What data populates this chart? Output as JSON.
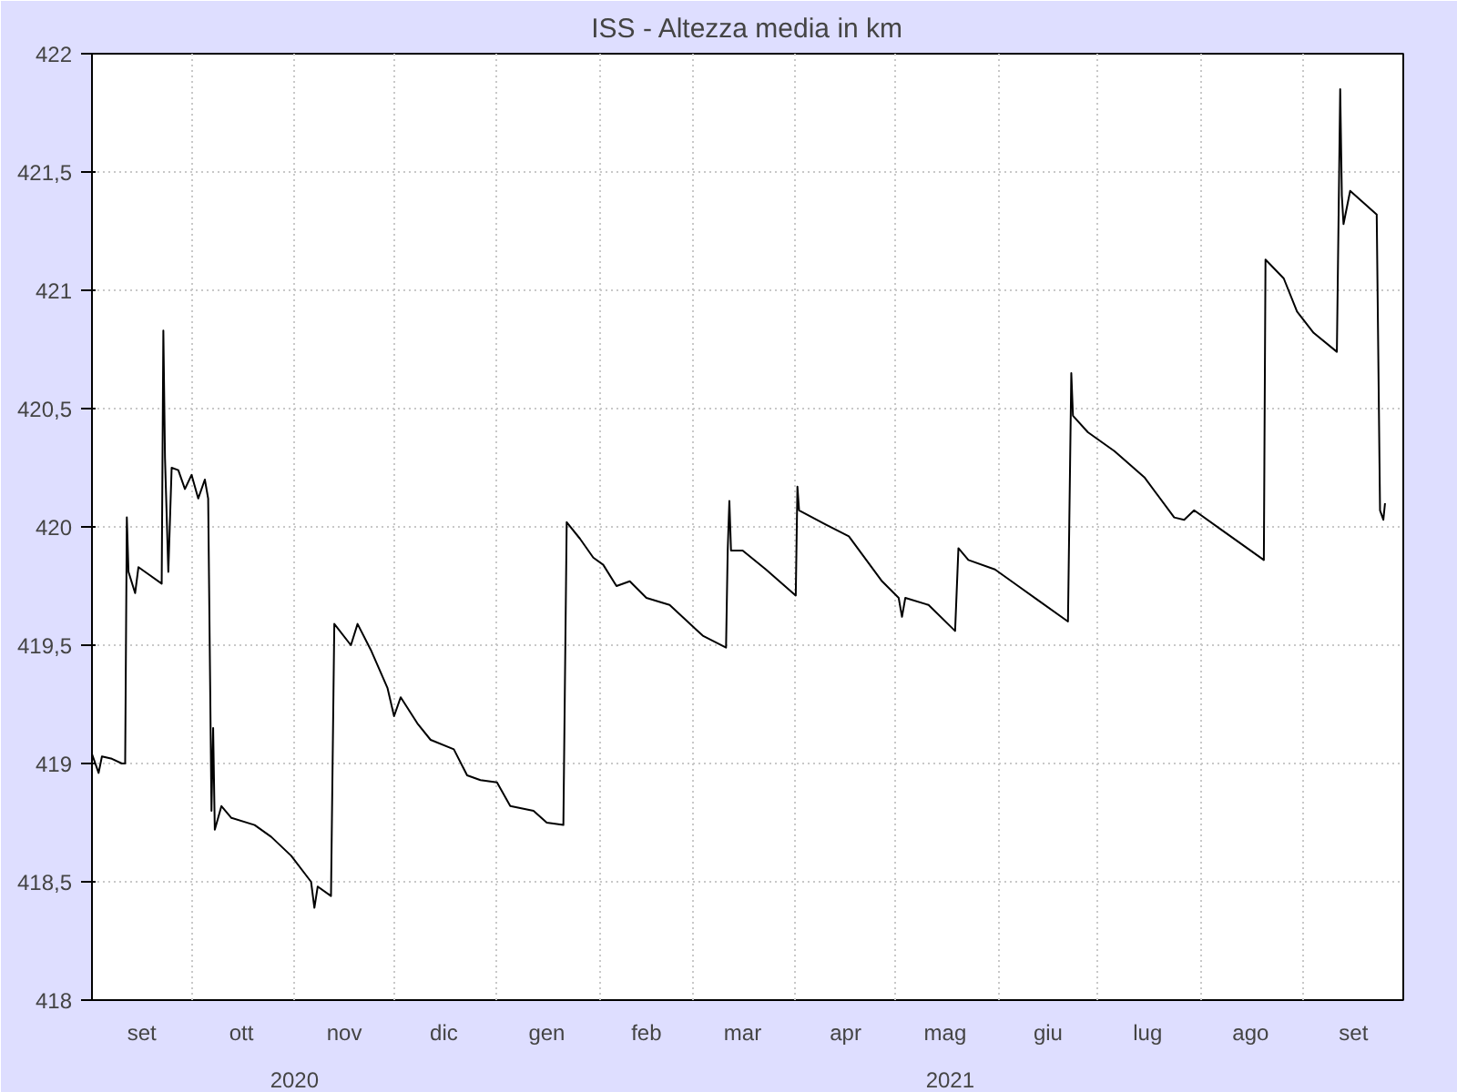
{
  "chart_data": {
    "type": "line",
    "title": "ISS - Altezza media in km",
    "x": [
      "2020-09-01",
      "2020-09-03",
      "2020-09-04",
      "2020-09-07",
      "2020-09-10",
      "2020-09-11",
      "2020-09-11T12:00",
      "2020-09-12",
      "2020-09-14",
      "2020-09-15",
      "2020-09-18",
      "2020-09-22",
      "2020-09-22T12:00",
      "2020-09-23",
      "2020-09-24",
      "2020-09-25",
      "2020-09-27",
      "2020-09-29",
      "2020-10-01",
      "2020-10-03",
      "2020-10-05",
      "2020-10-06",
      "2020-10-07",
      "2020-10-07T12:00",
      "2020-10-08",
      "2020-10-10",
      "2020-10-13",
      "2020-10-20",
      "2020-10-25",
      "2020-10-31",
      "2020-11-06",
      "2020-11-07",
      "2020-11-08",
      "2020-11-12",
      "2020-11-13",
      "2020-11-18",
      "2020-11-20",
      "2020-11-24",
      "2020-11-29",
      "2020-12-01",
      "2020-12-03",
      "2020-12-08",
      "2020-12-12",
      "2020-12-19",
      "2020-12-23",
      "2020-12-27",
      "2021-01-01",
      "2021-01-05",
      "2021-01-12",
      "2021-01-16",
      "2021-01-21",
      "2021-01-22",
      "2021-01-26",
      "2021-01-30",
      "2021-02-02",
      "2021-02-06",
      "2021-02-10",
      "2021-02-15",
      "2021-02-22",
      "2021-03-04",
      "2021-03-11",
      "2021-03-11T12:00",
      "2021-03-12",
      "2021-03-12T12:00",
      "2021-03-16",
      "2021-03-23",
      "2021-04-01",
      "2021-04-01T12:00",
      "2021-04-02",
      "2021-04-10",
      "2021-04-17",
      "2021-04-27",
      "2021-05-02",
      "2021-05-03",
      "2021-05-04",
      "2021-05-11",
      "2021-05-19",
      "2021-05-20",
      "2021-05-23",
      "2021-05-31",
      "2021-06-07",
      "2021-06-13",
      "2021-06-22",
      "2021-06-23",
      "2021-06-23T12:00",
      "2021-06-28",
      "2021-07-06",
      "2021-07-15",
      "2021-07-24",
      "2021-07-27",
      "2021-07-30",
      "2021-08-07",
      "2021-08-20",
      "2021-08-20T12:00",
      "2021-08-26",
      "2021-08-30",
      "2021-09-04",
      "2021-09-11",
      "2021-09-12",
      "2021-09-12T12:00",
      "2021-09-13",
      "2021-09-15",
      "2021-09-23",
      "2021-09-24",
      "2021-09-25",
      "2021-09-25T12:00"
    ],
    "series": [
      {
        "color": "#000000",
        "values": [
          419.04,
          418.96,
          419.03,
          419.02,
          419.0,
          419.0,
          420.04,
          419.81,
          419.72,
          419.83,
          419.8,
          419.76,
          420.83,
          420.29,
          419.81,
          420.25,
          420.24,
          420.16,
          420.22,
          420.12,
          420.2,
          420.12,
          418.8,
          419.15,
          418.72,
          418.82,
          418.77,
          418.74,
          418.69,
          418.61,
          418.5,
          418.39,
          418.48,
          418.44,
          419.59,
          419.5,
          419.59,
          419.48,
          419.32,
          419.2,
          419.28,
          419.17,
          419.1,
          419.06,
          418.95,
          418.93,
          418.92,
          418.82,
          418.8,
          418.75,
          418.74,
          420.02,
          419.95,
          419.87,
          419.84,
          419.75,
          419.77,
          419.7,
          419.67,
          419.54,
          419.49,
          419.9,
          420.11,
          419.9,
          419.9,
          419.82,
          419.71,
          420.17,
          420.07,
          420.01,
          419.96,
          419.77,
          419.7,
          419.62,
          419.7,
          419.67,
          419.56,
          419.91,
          419.86,
          419.82,
          419.75,
          419.69,
          419.6,
          420.65,
          420.47,
          420.4,
          420.32,
          420.21,
          420.04,
          420.03,
          420.07,
          419.99,
          419.86,
          421.13,
          421.05,
          420.91,
          420.82,
          420.74,
          421.85,
          421.4,
          421.28,
          421.42,
          421.32,
          420.07,
          420.03,
          420.1
        ]
      }
    ],
    "xlim": [
      "2020-09-01",
      "2021-10-01"
    ],
    "xticks": [
      {
        "value": "2020-09-16",
        "label": "set"
      },
      {
        "value": "2020-10-01",
        "label": null
      },
      {
        "value": "2020-10-16",
        "label": "ott"
      },
      {
        "value": "2020-11-01",
        "label": null
      },
      {
        "value": "2020-11-16",
        "label": "nov"
      },
      {
        "value": "2020-12-01",
        "label": null
      },
      {
        "value": "2020-12-16",
        "label": "dic"
      },
      {
        "value": "2021-01-01",
        "label": null
      },
      {
        "value": "2021-01-16",
        "label": "gen"
      },
      {
        "value": "2021-02-01",
        "label": null
      },
      {
        "value": "2021-02-15",
        "label": "feb"
      },
      {
        "value": "2021-03-01",
        "label": null
      },
      {
        "value": "2021-03-16",
        "label": "mar"
      },
      {
        "value": "2021-04-01",
        "label": null
      },
      {
        "value": "2021-04-16",
        "label": "apr"
      },
      {
        "value": "2021-05-01",
        "label": null
      },
      {
        "value": "2021-05-16",
        "label": "mag"
      },
      {
        "value": "2021-06-01",
        "label": null
      },
      {
        "value": "2021-06-16",
        "label": "giu"
      },
      {
        "value": "2021-07-01",
        "label": null
      },
      {
        "value": "2021-07-16",
        "label": "lug"
      },
      {
        "value": "2021-08-01",
        "label": null
      },
      {
        "value": "2021-08-16",
        "label": "ago"
      },
      {
        "value": "2021-09-01",
        "label": null
      },
      {
        "value": "2021-09-16",
        "label": "set"
      }
    ],
    "ylim": [
      418,
      422
    ],
    "yticks": [
      418,
      {
        "value": 418.5,
        "label": "418,5"
      },
      419,
      {
        "value": 419.5,
        "label": "419,5"
      },
      420,
      {
        "value": 420.5,
        "label": "420,5"
      },
      421,
      {
        "value": 421.5,
        "label": "421,5"
      },
      422
    ],
    "grid": true,
    "annotations": [
      "2020",
      "2021"
    ]
  }
}
